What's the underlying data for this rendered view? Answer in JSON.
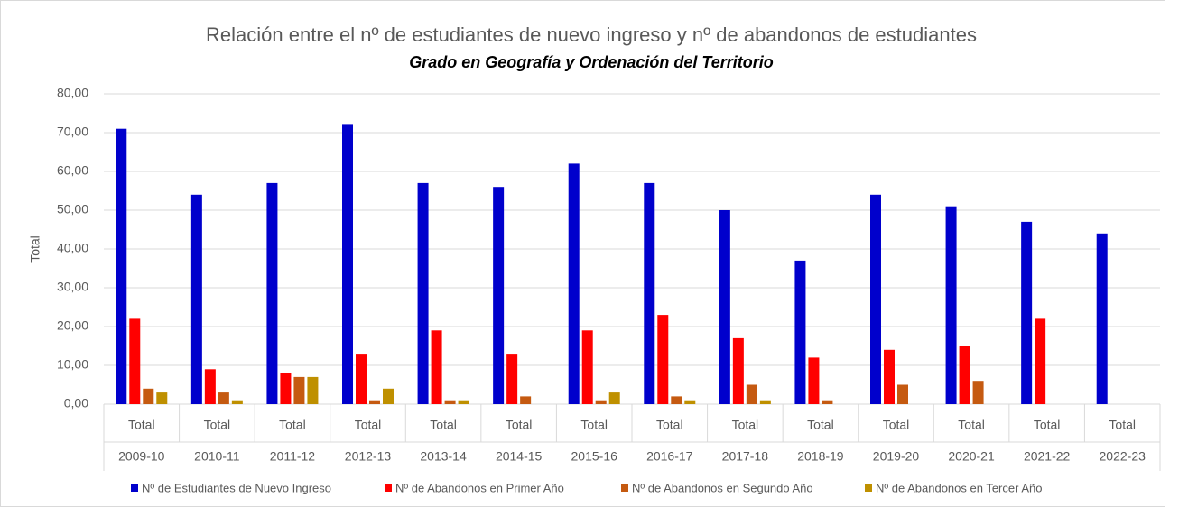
{
  "chart_data": {
    "type": "bar",
    "title": "Relación entre el nº de estudiantes de nuevo ingreso y nº de abandonos de estudiantes",
    "subtitle": "Grado en Geografía y Ordenación del Territorio",
    "y_label": "Total",
    "categories": [
      "2009-10",
      "2010-11",
      "2011-12",
      "2012-13",
      "2013-14",
      "2014-15",
      "2015-16",
      "2016-17",
      "2017-18",
      "2018-19",
      "2019-20",
      "2020-21",
      "2021-22",
      "2022-23"
    ],
    "category_sublabels": [
      "Total",
      "Total",
      "Total",
      "Total",
      "Total",
      "Total",
      "Total",
      "Total",
      "Total",
      "Total",
      "Total",
      "Total",
      "Total",
      "Total"
    ],
    "series": [
      {
        "name": "Nº de Estudiantes de Nuevo Ingreso",
        "color": "#0000cc",
        "values": [
          71,
          54,
          57,
          72,
          57,
          56,
          62,
          57,
          50,
          37,
          54,
          51,
          47,
          44
        ]
      },
      {
        "name": "Nº de Abandonos en Primer Año",
        "color": "#ff0000",
        "values": [
          22,
          9,
          8,
          13,
          19,
          13,
          19,
          23,
          17,
          12,
          14,
          15,
          22,
          null
        ]
      },
      {
        "name": "Nº de Abandonos en Segundo Año",
        "color": "#c55a11",
        "values": [
          4,
          3,
          7,
          1,
          1,
          2,
          1,
          2,
          5,
          1,
          5,
          6,
          null,
          null
        ]
      },
      {
        "name": "Nº de Abandonos en Tercer Año",
        "color": "#bf9000",
        "values": [
          3,
          1,
          7,
          4,
          1,
          null,
          3,
          1,
          1,
          null,
          null,
          null,
          null,
          null
        ]
      }
    ],
    "ylim": [
      0,
      80
    ],
    "yticks": [
      {
        "value": 0,
        "label": "0,00"
      },
      {
        "value": 10,
        "label": "10,00"
      },
      {
        "value": 20,
        "label": "20,00"
      },
      {
        "value": 30,
        "label": "30,00"
      },
      {
        "value": 40,
        "label": "40,00"
      },
      {
        "value": 50,
        "label": "50,00"
      },
      {
        "value": 60,
        "label": "60,00"
      },
      {
        "value": 70,
        "label": "70,00"
      },
      {
        "value": 80,
        "label": "80,00"
      }
    ],
    "grid": true,
    "legend": "bottom"
  }
}
